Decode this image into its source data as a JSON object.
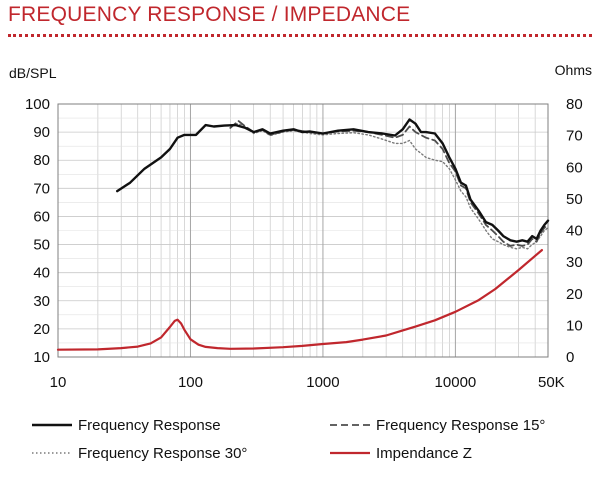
{
  "header": {
    "title": "FREQUENCY RESPONSE / IMPEDANCE"
  },
  "colors": {
    "accent": "#c0272d",
    "grid": "#c8c8c8",
    "frame": "#7f7f7f"
  },
  "chart_data": {
    "type": "line",
    "title": "FREQUENCY RESPONSE / IMPEDANCE",
    "xscale": "log",
    "xlim": [
      10,
      50000
    ],
    "x_tick_values": [
      10,
      100,
      1000,
      10000,
      50000
    ],
    "x_tick_labels": [
      "10",
      "100",
      "1000",
      "10000",
      "50K"
    ],
    "ylabel_left": "dB/SPL",
    "ylim_left": [
      10,
      100
    ],
    "y_ticks_left": [
      "10",
      "20",
      "30",
      "40",
      "50",
      "60",
      "70",
      "80",
      "90",
      "100"
    ],
    "ylabel_right": "Ohms",
    "ylim_right": [
      0,
      80
    ],
    "y_ticks_right": [
      "0",
      "10",
      "20",
      "30",
      "40",
      "50",
      "60",
      "70",
      "80"
    ],
    "grid": true,
    "legend_position": "bottom",
    "series": [
      {
        "name": "Frequency Response",
        "axis": "left",
        "color": "#111111",
        "style": "solid",
        "points": [
          [
            28,
            69
          ],
          [
            35,
            72
          ],
          [
            45,
            77
          ],
          [
            60,
            81
          ],
          [
            70,
            84
          ],
          [
            80,
            88
          ],
          [
            90,
            89
          ],
          [
            110,
            89
          ],
          [
            130,
            92.5
          ],
          [
            150,
            92
          ],
          [
            180,
            92.3
          ],
          [
            220,
            92.5
          ],
          [
            260,
            91.5
          ],
          [
            300,
            90
          ],
          [
            350,
            91
          ],
          [
            400,
            89.5
          ],
          [
            500,
            90.5
          ],
          [
            600,
            91
          ],
          [
            700,
            90
          ],
          [
            800,
            90.2
          ],
          [
            1000,
            89.5
          ],
          [
            1300,
            90.5
          ],
          [
            1700,
            91
          ],
          [
            2200,
            90
          ],
          [
            2800,
            89.5
          ],
          [
            3500,
            88.8
          ],
          [
            4000,
            91
          ],
          [
            4500,
            94.5
          ],
          [
            5000,
            93
          ],
          [
            5500,
            90
          ],
          [
            6000,
            90
          ],
          [
            7000,
            89.5
          ],
          [
            8000,
            86
          ],
          [
            9000,
            81
          ],
          [
            10000,
            77
          ],
          [
            11000,
            72
          ],
          [
            12000,
            71
          ],
          [
            13000,
            66
          ],
          [
            15000,
            62
          ],
          [
            17000,
            58
          ],
          [
            19000,
            57
          ],
          [
            21000,
            55
          ],
          [
            23000,
            53
          ],
          [
            26000,
            51.5
          ],
          [
            29000,
            51
          ],
          [
            32000,
            51.5
          ],
          [
            35000,
            51
          ],
          [
            38000,
            53
          ],
          [
            41000,
            52
          ],
          [
            44000,
            55
          ],
          [
            47000,
            57
          ],
          [
            50000,
            58.5
          ]
        ]
      },
      {
        "name": "Frequency Response 15°",
        "axis": "left",
        "color": "#4d4d4d",
        "style": "dashed",
        "points": [
          [
            200,
            91.5
          ],
          [
            230,
            94
          ],
          [
            260,
            92
          ],
          [
            300,
            90
          ],
          [
            350,
            90.8
          ],
          [
            400,
            89
          ],
          [
            500,
            90.2
          ],
          [
            600,
            90.8
          ],
          [
            800,
            90
          ],
          [
            1000,
            89.5
          ],
          [
            1300,
            90.2
          ],
          [
            1700,
            90.5
          ],
          [
            2200,
            90
          ],
          [
            2800,
            89
          ],
          [
            3500,
            88
          ],
          [
            4000,
            89
          ],
          [
            4500,
            92
          ],
          [
            5000,
            90
          ],
          [
            6000,
            88
          ],
          [
            7000,
            87
          ],
          [
            8000,
            84
          ],
          [
            9000,
            79
          ],
          [
            10000,
            76
          ],
          [
            11000,
            71
          ],
          [
            12000,
            70
          ],
          [
            13000,
            65
          ],
          [
            15000,
            61
          ],
          [
            17000,
            57
          ],
          [
            19000,
            55
          ],
          [
            21000,
            53
          ],
          [
            23000,
            51
          ],
          [
            26000,
            49.5
          ],
          [
            29000,
            50
          ],
          [
            32000,
            49.5
          ],
          [
            35000,
            50
          ],
          [
            38000,
            52
          ],
          [
            41000,
            51
          ],
          [
            44000,
            54
          ],
          [
            47000,
            56
          ],
          [
            50000,
            57
          ]
        ]
      },
      {
        "name": "Frequency Response 30°",
        "axis": "left",
        "color": "#7a7a7a",
        "style": "dotted",
        "points": [
          [
            220,
            93
          ],
          [
            250,
            92.5
          ],
          [
            300,
            89.5
          ],
          [
            350,
            90.5
          ],
          [
            400,
            88.8
          ],
          [
            500,
            90
          ],
          [
            600,
            90.5
          ],
          [
            800,
            89.5
          ],
          [
            1000,
            89
          ],
          [
            1300,
            89.5
          ],
          [
            1700,
            89.8
          ],
          [
            2200,
            89
          ],
          [
            2800,
            87.5
          ],
          [
            3500,
            86
          ],
          [
            4000,
            86
          ],
          [
            4500,
            87
          ],
          [
            5000,
            84
          ],
          [
            6000,
            81
          ],
          [
            7000,
            80
          ],
          [
            8000,
            79.5
          ],
          [
            9000,
            77
          ],
          [
            10000,
            73
          ],
          [
            11000,
            69
          ],
          [
            12000,
            67
          ],
          [
            13000,
            63
          ],
          [
            15000,
            59
          ],
          [
            17000,
            55
          ],
          [
            19000,
            52
          ],
          [
            21000,
            51
          ],
          [
            23000,
            50
          ],
          [
            26000,
            49
          ],
          [
            29000,
            48.5
          ],
          [
            32000,
            49
          ],
          [
            35000,
            48.5
          ],
          [
            38000,
            50
          ],
          [
            41000,
            51
          ],
          [
            44000,
            53
          ],
          [
            47000,
            55
          ],
          [
            50000,
            56
          ]
        ]
      },
      {
        "name": "Impendance Z",
        "axis": "right",
        "color": "#c0272d",
        "style": "solid",
        "points": [
          [
            10,
            2.3
          ],
          [
            20,
            2.4
          ],
          [
            30,
            2.8
          ],
          [
            40,
            3.3
          ],
          [
            50,
            4.3
          ],
          [
            60,
            6.2
          ],
          [
            70,
            9.5
          ],
          [
            76,
            11.4
          ],
          [
            80,
            11.8
          ],
          [
            85,
            10.6
          ],
          [
            90,
            8.6
          ],
          [
            100,
            5.6
          ],
          [
            115,
            3.9
          ],
          [
            130,
            3.2
          ],
          [
            160,
            2.8
          ],
          [
            200,
            2.6
          ],
          [
            300,
            2.7
          ],
          [
            500,
            3.1
          ],
          [
            700,
            3.5
          ],
          [
            1000,
            4.1
          ],
          [
            1500,
            4.7
          ],
          [
            2000,
            5.5
          ],
          [
            3000,
            6.8
          ],
          [
            4000,
            8.4
          ],
          [
            5000,
            9.6
          ],
          [
            7000,
            11.6
          ],
          [
            10000,
            14.3
          ],
          [
            15000,
            18
          ],
          [
            20000,
            21.5
          ],
          [
            30000,
            27.5
          ],
          [
            40000,
            32
          ],
          [
            45000,
            33.8
          ]
        ]
      }
    ]
  }
}
